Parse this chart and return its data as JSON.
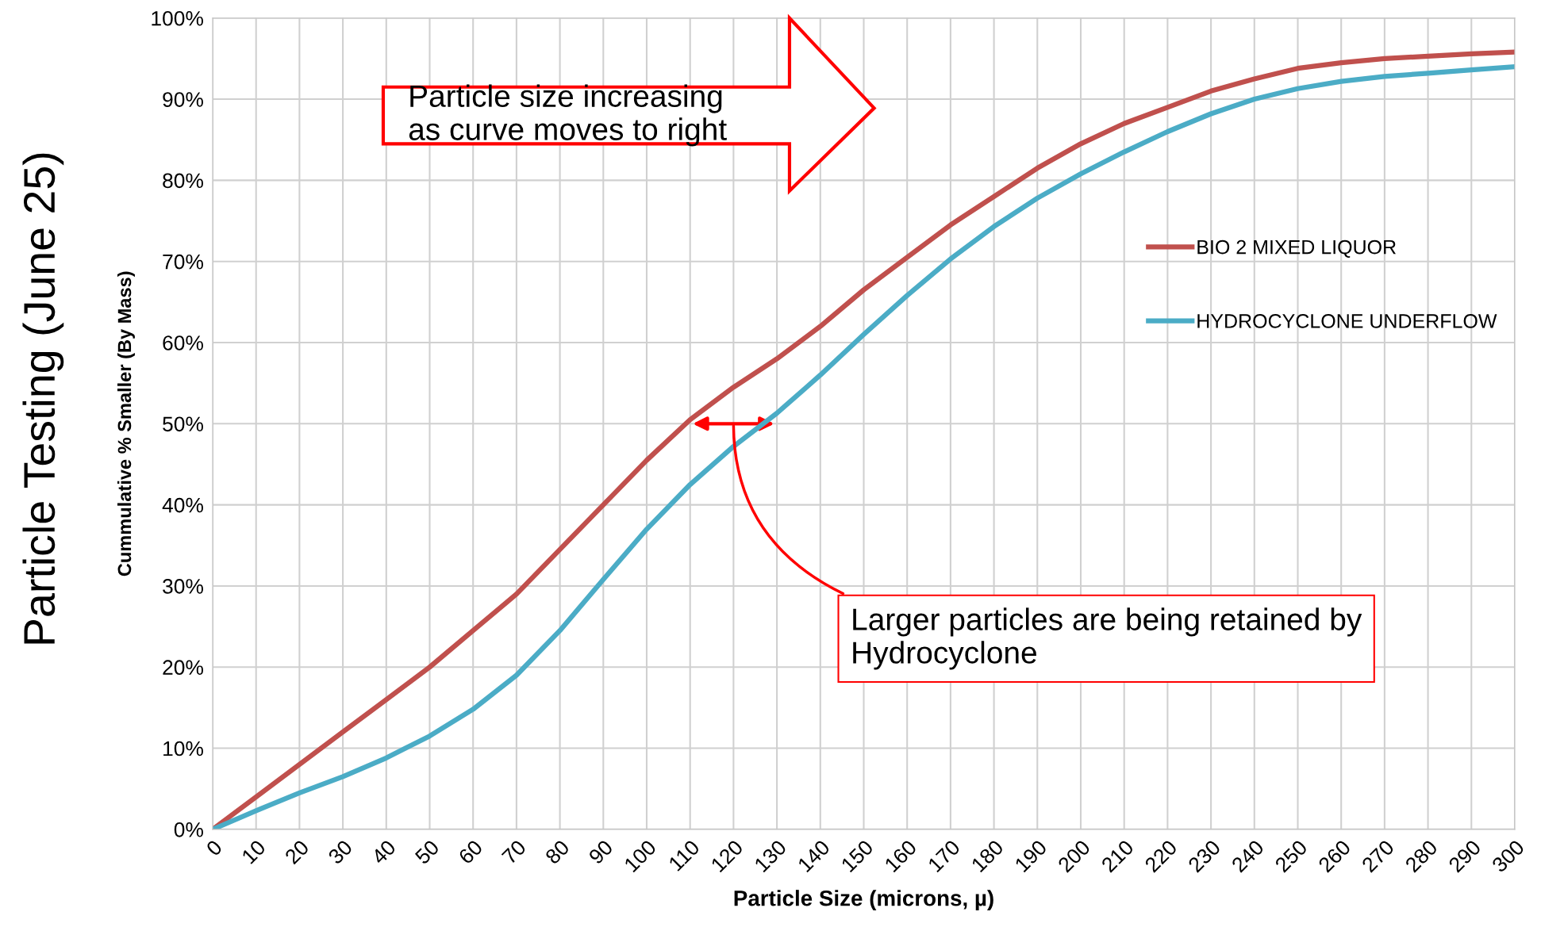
{
  "chart_data": {
    "type": "line",
    "title": "Particle Testing (June 25)",
    "xlabel": "Particle Size (microns, µ)",
    "ylabel": "Cummulative % Smaller (By Mass)",
    "x": [
      0,
      10,
      20,
      30,
      40,
      50,
      60,
      70,
      80,
      90,
      100,
      110,
      120,
      130,
      140,
      150,
      160,
      170,
      180,
      190,
      200,
      210,
      220,
      230,
      240,
      250,
      260,
      270,
      280,
      290,
      300
    ],
    "series": [
      {
        "name": "BIO 2 MIXED LIQUOR",
        "color": "#c0504d",
        "values": [
          0,
          4,
          8,
          12,
          16,
          20,
          24.5,
          29,
          34.5,
          40,
          45.5,
          50.5,
          54.5,
          58,
          62,
          66.5,
          70.5,
          74.5,
          78,
          81.5,
          84.5,
          87,
          89,
          91,
          92.5,
          93.8,
          94.5,
          95,
          95.3,
          95.6,
          95.8
        ]
      },
      {
        "name": "HYDROCYCLONE UNDERFLOW",
        "color": "#4bacc6",
        "values": [
          0,
          2.3,
          4.5,
          6.5,
          8.8,
          11.5,
          14.8,
          19,
          24.5,
          30.8,
          37,
          42.5,
          47.2,
          51.3,
          56,
          61,
          65.8,
          70.3,
          74.3,
          77.8,
          80.8,
          83.5,
          86,
          88.2,
          90,
          91.3,
          92.2,
          92.8,
          93.2,
          93.6,
          94
        ]
      }
    ],
    "xlim": [
      0,
      300
    ],
    "xticks": [
      0,
      10,
      20,
      30,
      40,
      50,
      60,
      70,
      80,
      90,
      100,
      110,
      120,
      130,
      140,
      150,
      160,
      170,
      180,
      190,
      200,
      210,
      220,
      230,
      240,
      250,
      260,
      270,
      280,
      290,
      300
    ],
    "ylim": [
      0,
      100
    ],
    "yticks": [
      {
        "value": 0,
        "label": "0%"
      },
      {
        "value": 10,
        "label": "10%"
      },
      {
        "value": 20,
        "label": "20%"
      },
      {
        "value": 30,
        "label": "30%"
      },
      {
        "value": 40,
        "label": "40%"
      },
      {
        "value": 50,
        "label": "50%"
      },
      {
        "value": 60,
        "label": "60%"
      },
      {
        "value": 70,
        "label": "70%"
      },
      {
        "value": 80,
        "label": "80%"
      },
      {
        "value": 90,
        "label": "90%"
      },
      {
        "value": 100,
        "label": "100%"
      }
    ],
    "grid": true,
    "legend": "right",
    "marker": "none",
    "line_style": "solid",
    "annotations": [
      "Particle size increasing\nas curve moves to right",
      "Larger particles are being retained by\nHydrocyclone"
    ]
  }
}
